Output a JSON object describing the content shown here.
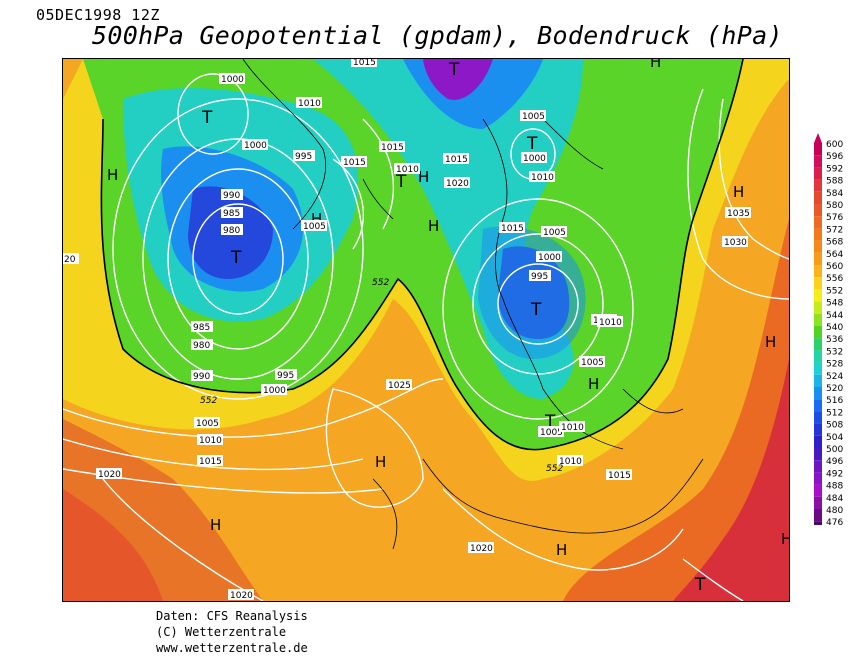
{
  "header": {
    "date": "05DEC1998 12Z",
    "title": "500hPa Geopotential (gpdam), Bodendruck (hPa)"
  },
  "credits": {
    "line1": "Daten: CFS Reanalysis",
    "line2": "(C) Wetterzentrale",
    "line3": "www.wetterzentrale.de"
  },
  "legend": {
    "levels": [
      600,
      596,
      592,
      588,
      584,
      580,
      576,
      572,
      568,
      564,
      560,
      556,
      552,
      548,
      544,
      540,
      536,
      532,
      528,
      524,
      520,
      516,
      512,
      508,
      504,
      500,
      496,
      492,
      488,
      484,
      480,
      476
    ],
    "colors": [
      "#c8005a",
      "#d0105a",
      "#d8204a",
      "#e0383c",
      "#e54a30",
      "#ea5a28",
      "#ee6a22",
      "#f27a1c",
      "#f68a18",
      "#f89c18",
      "#fab41a",
      "#fcd21c",
      "#f6ee1a",
      "#c6ec1c",
      "#8ee21e",
      "#52d422",
      "#2ad26a",
      "#22d4a6",
      "#1ed2d2",
      "#1ab4ea",
      "#1890f0",
      "#1a6cf0",
      "#1e4ee6",
      "#2636d6",
      "#3020c8",
      "#4a18c0",
      "#6a18c4",
      "#8c14c8",
      "#a810ca",
      "#8a10a8",
      "#6a0c86",
      "#4a0866"
    ]
  },
  "map": {
    "high_label": "H",
    "low_label": "T",
    "lows": 8,
    "highs": 12,
    "isobar_labels": [
      "1000",
      "1005",
      "1010",
      "1015",
      "1020",
      "1025",
      "1030",
      "1035",
      "995",
      "990",
      "985",
      "980",
      "552"
    ],
    "isobar_values": {
      "l1": "1000",
      "l2": "1005",
      "l3": "1010",
      "l4": "1015",
      "l5": "995",
      "l6": "990",
      "l7": "985",
      "l8": "980",
      "l9": "1015",
      "l10": "1010",
      "l11": "1015",
      "l12": "1020",
      "l13": "1005",
      "l14": "1000",
      "l15": "1010",
      "l16": "1015",
      "l17": "1005",
      "l18": "1000",
      "l19": "995",
      "l20": "1000",
      "l21": "1005",
      "l22": "1010",
      "l23": "1005",
      "l24": "1035",
      "l25": "1030",
      "l26": "985",
      "l27": "980",
      "l28": "990",
      "l29": "1000",
      "l30": "995",
      "l31": "1025",
      "l32": "1005",
      "l33": "1010",
      "l34": "1015",
      "l35": "1020",
      "l36": "1020",
      "l37": "1020",
      "l38": "1015",
      "l39": "1010",
      "l40": "552",
      "l41": "552",
      "l42": "552",
      "l43": "1015",
      "l44": "1010",
      "l45": "1005",
      "l46": "20"
    }
  }
}
